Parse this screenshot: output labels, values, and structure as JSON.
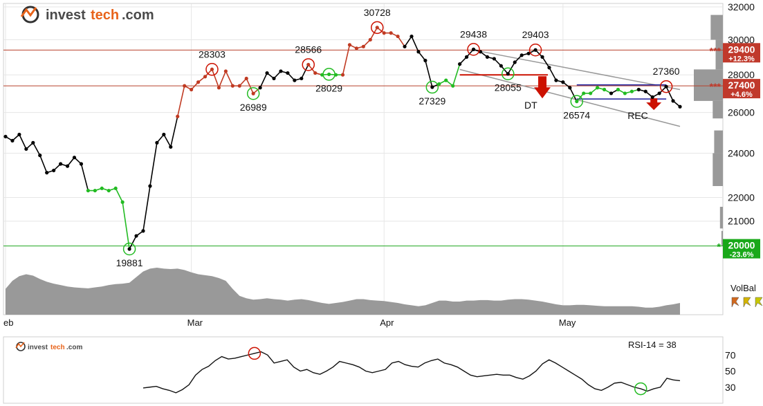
{
  "brand": {
    "name_plain": "invest",
    "name_accent": "tech",
    "suffix": ".com"
  },
  "colors": {
    "price_black": "#000000",
    "price_red": "#c03a22",
    "price_green": "#22bb22",
    "resistance": "#b8412b",
    "support": "#22aa22",
    "channel": "#999999",
    "rect": "#1a1a99",
    "signal_arrow": "#cc1100",
    "volume": "#999999",
    "tag_red": "#c0392b",
    "tag_green": "#19a819"
  },
  "chart_data": [
    {
      "type": "line",
      "series": [
        {
          "values": [
            24800,
            24600,
            24900,
            24200,
            24500,
            23900,
            23100,
            23200,
            23500,
            23400,
            23800,
            23500,
            22300,
            22300,
            22400,
            22300,
            22400,
            21800,
            19881,
            20400,
            20600,
            22500,
            24500,
            24900,
            24300,
            25800,
            27400,
            27200,
            27600,
            27900,
            28303,
            27300,
            28200,
            27400,
            27400,
            27800,
            26989,
            27300,
            28100,
            27800,
            28200,
            28100,
            27700,
            27800,
            28566,
            28100,
            28000,
            28029,
            28000,
            28000,
            29700,
            29500,
            29600,
            30000,
            30728,
            30400,
            30400,
            30200,
            29600,
            30200,
            29300,
            28800,
            27329,
            27500,
            27700,
            27400,
            28600,
            29000,
            29438,
            29300,
            29000,
            28900,
            28500,
            28055,
            28700,
            29100,
            29200,
            29403,
            29000,
            28400,
            27700,
            27600,
            27300,
            26574,
            27000,
            27000,
            27300,
            27200,
            27000,
            27200,
            27000,
            27100,
            27200,
            27100,
            26800,
            27000,
            27360,
            26600,
            26300
          ],
          "color_segments": [
            {
              "from": 0,
              "to": 12,
              "color": "black"
            },
            {
              "from": 12,
              "to": 18,
              "color": "green"
            },
            {
              "from": 18,
              "to": 25,
              "color": "black"
            },
            {
              "from": 25,
              "to": 37,
              "color": "red"
            },
            {
              "from": 37,
              "to": 44,
              "color": "black"
            },
            {
              "from": 44,
              "to": 46,
              "color": "red"
            },
            {
              "from": 46,
              "to": 49,
              "color": "green"
            },
            {
              "from": 49,
              "to": 58,
              "color": "red"
            },
            {
              "from": 58,
              "to": 63,
              "color": "black"
            },
            {
              "from": 63,
              "to": 66,
              "color": "green"
            },
            {
              "from": 66,
              "to": 83,
              "color": "black"
            },
            {
              "from": 83,
              "to": 88,
              "color": "green"
            },
            {
              "from": 88,
              "to": 89,
              "color": "black"
            },
            {
              "from": 89,
              "to": 92,
              "color": "green"
            },
            {
              "from": 92,
              "to": 98,
              "color": "black"
            }
          ]
        }
      ],
      "x_labels": [
        {
          "label": "eb",
          "i": 0
        },
        {
          "label": "Mar",
          "i": 27
        },
        {
          "label": "Apr",
          "i": 55
        },
        {
          "label": "May",
          "i": 81
        }
      ],
      "y_ticks": [
        32000,
        30000,
        28000,
        26000,
        24000,
        22000,
        21000,
        20000
      ],
      "y_range": [
        19881,
        32000
      ],
      "y_scale": "log",
      "peaks": [
        {
          "label": "28303",
          "i": 30,
          "value": 28303,
          "kind": "top"
        },
        {
          "label": "28566",
          "i": 44,
          "value": 28566,
          "kind": "top"
        },
        {
          "label": "30728",
          "i": 54,
          "value": 30728,
          "kind": "top"
        },
        {
          "label": "29438",
          "i": 68,
          "value": 29438,
          "kind": "top"
        },
        {
          "label": "29403",
          "i": 77,
          "value": 29403,
          "kind": "top"
        },
        {
          "label": "27360",
          "i": 96,
          "value": 27360,
          "kind": "top"
        },
        {
          "label": "26989",
          "i": 36,
          "value": 26989,
          "kind": "bottom"
        },
        {
          "label": "28029",
          "i": 47,
          "value": 28029,
          "kind": "bottom"
        },
        {
          "label": "19881",
          "i": 18,
          "value": 19881,
          "kind": "bottom"
        },
        {
          "label": "27329",
          "i": 62,
          "value": 27329,
          "kind": "bottom"
        },
        {
          "label": "28055",
          "i": 73,
          "value": 28055,
          "kind": "bottom"
        },
        {
          "label": "26574",
          "i": 83,
          "value": 26574,
          "kind": "bottom"
        }
      ],
      "levels": [
        {
          "value": 29400,
          "label": "29400",
          "change": "+12.3%",
          "stars": "***",
          "type": "resistance"
        },
        {
          "value": 27400,
          "label": "27400",
          "change": "+4.6%",
          "stars": "***",
          "type": "resistance"
        },
        {
          "value": 20000,
          "label": "20000",
          "change": "-23.6%",
          "stars": "*",
          "type": "support"
        }
      ],
      "channel": {
        "upper": [
          [
            68,
            29400
          ],
          [
            98,
            27200
          ]
        ],
        "lower": [
          [
            66,
            28300
          ],
          [
            98,
            25300
          ]
        ]
      },
      "dt_signal": {
        "label": "DT",
        "i": 78,
        "value": 28000,
        "rect_from": 66
      },
      "rec_signal": {
        "label": "REC",
        "i": 94,
        "rect": {
          "i0": 83,
          "i1": 96,
          "top": 27450,
          "bottom": 26700
        }
      },
      "volume_profile": [
        {
          "lo": 30000,
          "hi": 31500,
          "w": 0.42
        },
        {
          "lo": 28300,
          "hi": 30000,
          "w": 0.25
        },
        {
          "lo": 26600,
          "hi": 28300,
          "w": 1.0
        },
        {
          "lo": 25700,
          "hi": 26600,
          "w": 0.35
        },
        {
          "lo": 24000,
          "hi": 25100,
          "w": 0.3
        },
        {
          "lo": 22500,
          "hi": 24000,
          "w": 0.35
        },
        {
          "lo": 20700,
          "hi": 21600,
          "w": 0.1
        },
        {
          "lo": 20000,
          "hi": 20600,
          "w": 0.05
        }
      ],
      "volume_area": [
        0.55,
        0.72,
        0.82,
        0.86,
        0.83,
        0.76,
        0.7,
        0.66,
        0.63,
        0.6,
        0.58,
        0.57,
        0.56,
        0.58,
        0.6,
        0.63,
        0.65,
        0.66,
        0.68,
        0.8,
        0.92,
        0.98,
        1.0,
        0.98,
        0.97,
        0.98,
        0.95,
        0.9,
        0.86,
        0.84,
        0.82,
        0.78,
        0.72,
        0.55,
        0.4,
        0.35,
        0.32,
        0.33,
        0.35,
        0.33,
        0.32,
        0.3,
        0.32,
        0.33,
        0.31,
        0.28,
        0.25,
        0.23,
        0.25,
        0.27,
        0.3,
        0.33,
        0.33,
        0.31,
        0.3,
        0.29,
        0.27,
        0.25,
        0.22,
        0.2,
        0.18,
        0.2,
        0.25,
        0.3,
        0.3,
        0.28,
        0.28,
        0.3,
        0.3,
        0.31,
        0.31,
        0.3,
        0.3,
        0.32,
        0.33,
        0.33,
        0.32,
        0.3,
        0.28,
        0.25,
        0.22,
        0.2,
        0.2,
        0.21,
        0.21,
        0.2,
        0.19,
        0.18,
        0.18,
        0.18,
        0.18,
        0.18,
        0.17,
        0.15,
        0.15,
        0.17,
        0.2,
        0.22,
        0.25
      ],
      "volbal": {
        "label": "VolBal",
        "arrow_colors": [
          "#d2691e",
          "#d4b400",
          "#c8c800"
        ]
      }
    },
    {
      "type": "line",
      "title": "RSI-14 = 38",
      "y_ticks": [
        70,
        50,
        30
      ],
      "y_range": [
        10,
        90
      ],
      "start_index": 20,
      "values": [
        29,
        30,
        31,
        28,
        26,
        23,
        27,
        33,
        45,
        52,
        56,
        63,
        68,
        65,
        66,
        68,
        70,
        72,
        74,
        70,
        60,
        62,
        64,
        55,
        50,
        52,
        48,
        46,
        50,
        55,
        62,
        60,
        58,
        55,
        50,
        48,
        50,
        52,
        60,
        62,
        58,
        56,
        55,
        60,
        63,
        65,
        60,
        58,
        55,
        50,
        45,
        43,
        44,
        45,
        46,
        45,
        45,
        42,
        40,
        44,
        50,
        59,
        64,
        60,
        55,
        50,
        45,
        40,
        33,
        28,
        26,
        30,
        35,
        36,
        33,
        30,
        28,
        25,
        28,
        30,
        41,
        39,
        38
      ],
      "markers": [
        {
          "i": 17,
          "kind": "top"
        },
        {
          "i": 76,
          "kind": "bottom"
        }
      ]
    }
  ]
}
